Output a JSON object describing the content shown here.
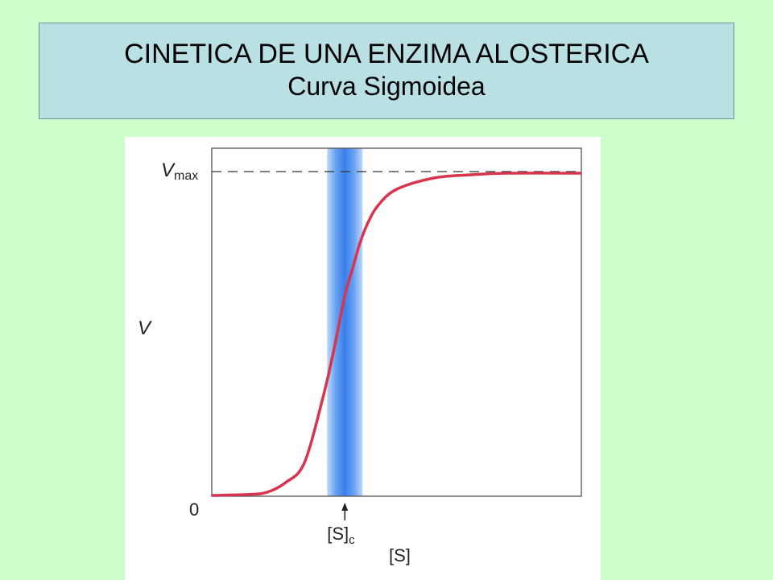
{
  "title": {
    "line1": "CINETICA DE UNA ENZIMA ALOSTERICA",
    "line2": "Curva Sigmoidea"
  },
  "colors": {
    "background": "#ccffcc",
    "title_box": "#b9e0e3",
    "curve": "#d8344f",
    "band": "#3f7fe0",
    "dashed_line": "#333333",
    "axis": "#555555"
  },
  "chart_data": {
    "type": "line",
    "title": "",
    "xlabel": "[S]",
    "ylabel": "V",
    "ylim": [
      0,
      1
    ],
    "xlim": [
      0,
      1
    ],
    "series": [
      {
        "values_x": [
          0.0,
          0.1,
          0.15,
          0.2,
          0.25,
          0.3,
          0.33,
          0.36,
          0.38,
          0.4,
          0.42,
          0.45,
          0.5,
          0.6,
          0.7,
          0.8,
          1.0
        ],
        "values_y": [
          0.0,
          0.003,
          0.01,
          0.04,
          0.1,
          0.3,
          0.45,
          0.62,
          0.7,
          0.78,
          0.84,
          0.9,
          0.95,
          0.985,
          0.995,
          1.0,
          1.0
        ]
      }
    ],
    "annotations": {
      "vmax": {
        "main": "V",
        "sub": "max"
      },
      "zero": "0",
      "sc": {
        "main": "[S]",
        "sub": "c"
      },
      "sc_x": 0.36,
      "vmax_y": 1.0
    },
    "grid": false
  }
}
